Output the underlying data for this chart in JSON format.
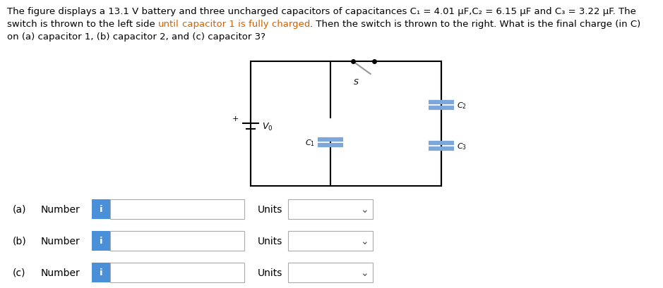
{
  "bg_color": "#ffffff",
  "text_color": "#000000",
  "orange_color": "#d46000",
  "blue_btn_color": "#4a90d9",
  "line1_segments": [
    [
      "The figure displays a 13.1 V battery and three uncharged capacitors of capacitances C",
      "#000000"
    ],
    [
      "₁ = 4.01 μF,C",
      "#000000"
    ],
    [
      "₂ = 6.15 μF and C",
      "#000000"
    ],
    [
      "₃ = 3.22 μF. The",
      "#000000"
    ]
  ],
  "line2_segments": [
    [
      "switch is thrown to the left side ",
      "#000000"
    ],
    [
      "until",
      "#d46000"
    ],
    [
      " ",
      "#000000"
    ],
    [
      "capacitor 1 is fully charged",
      "#d46000"
    ],
    [
      ". Then the switch is thrown to the right. What is the final charge (in C)",
      "#000000"
    ]
  ],
  "line3": "on (a) capacitor 1, (b) capacitor 2, and (c) capacitor 3?",
  "rows": [
    {
      "label": "(a)",
      "sublabel": "Number"
    },
    {
      "label": "(b)",
      "sublabel": "Number"
    },
    {
      "label": "(c)",
      "sublabel": "Number"
    }
  ],
  "cap_color": "#7da7d9",
  "wire_color": "#000000",
  "switch_color": "#999999"
}
